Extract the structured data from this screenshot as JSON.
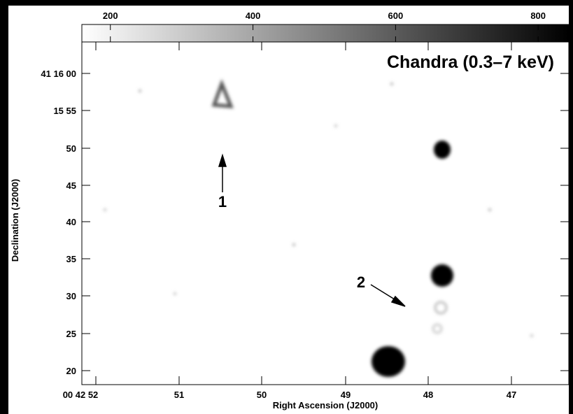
{
  "figure": {
    "title": "Chandra (0.3–7 keV)",
    "colorbar": {
      "range": [
        160,
        843
      ],
      "ticks": [
        200,
        400,
        600,
        800
      ]
    },
    "x_axis": {
      "label": "Right Ascension (J2000)",
      "ticks": [
        "00 42 52",
        "51",
        "50",
        "49",
        "48",
        "47"
      ]
    },
    "y_axis": {
      "label": "Declination (J2000)",
      "ticks": [
        "41 16 00",
        "15 55",
        "50",
        "45",
        "40",
        "35",
        "30",
        "25",
        "20"
      ]
    },
    "annotations": [
      "1",
      "2"
    ]
  }
}
